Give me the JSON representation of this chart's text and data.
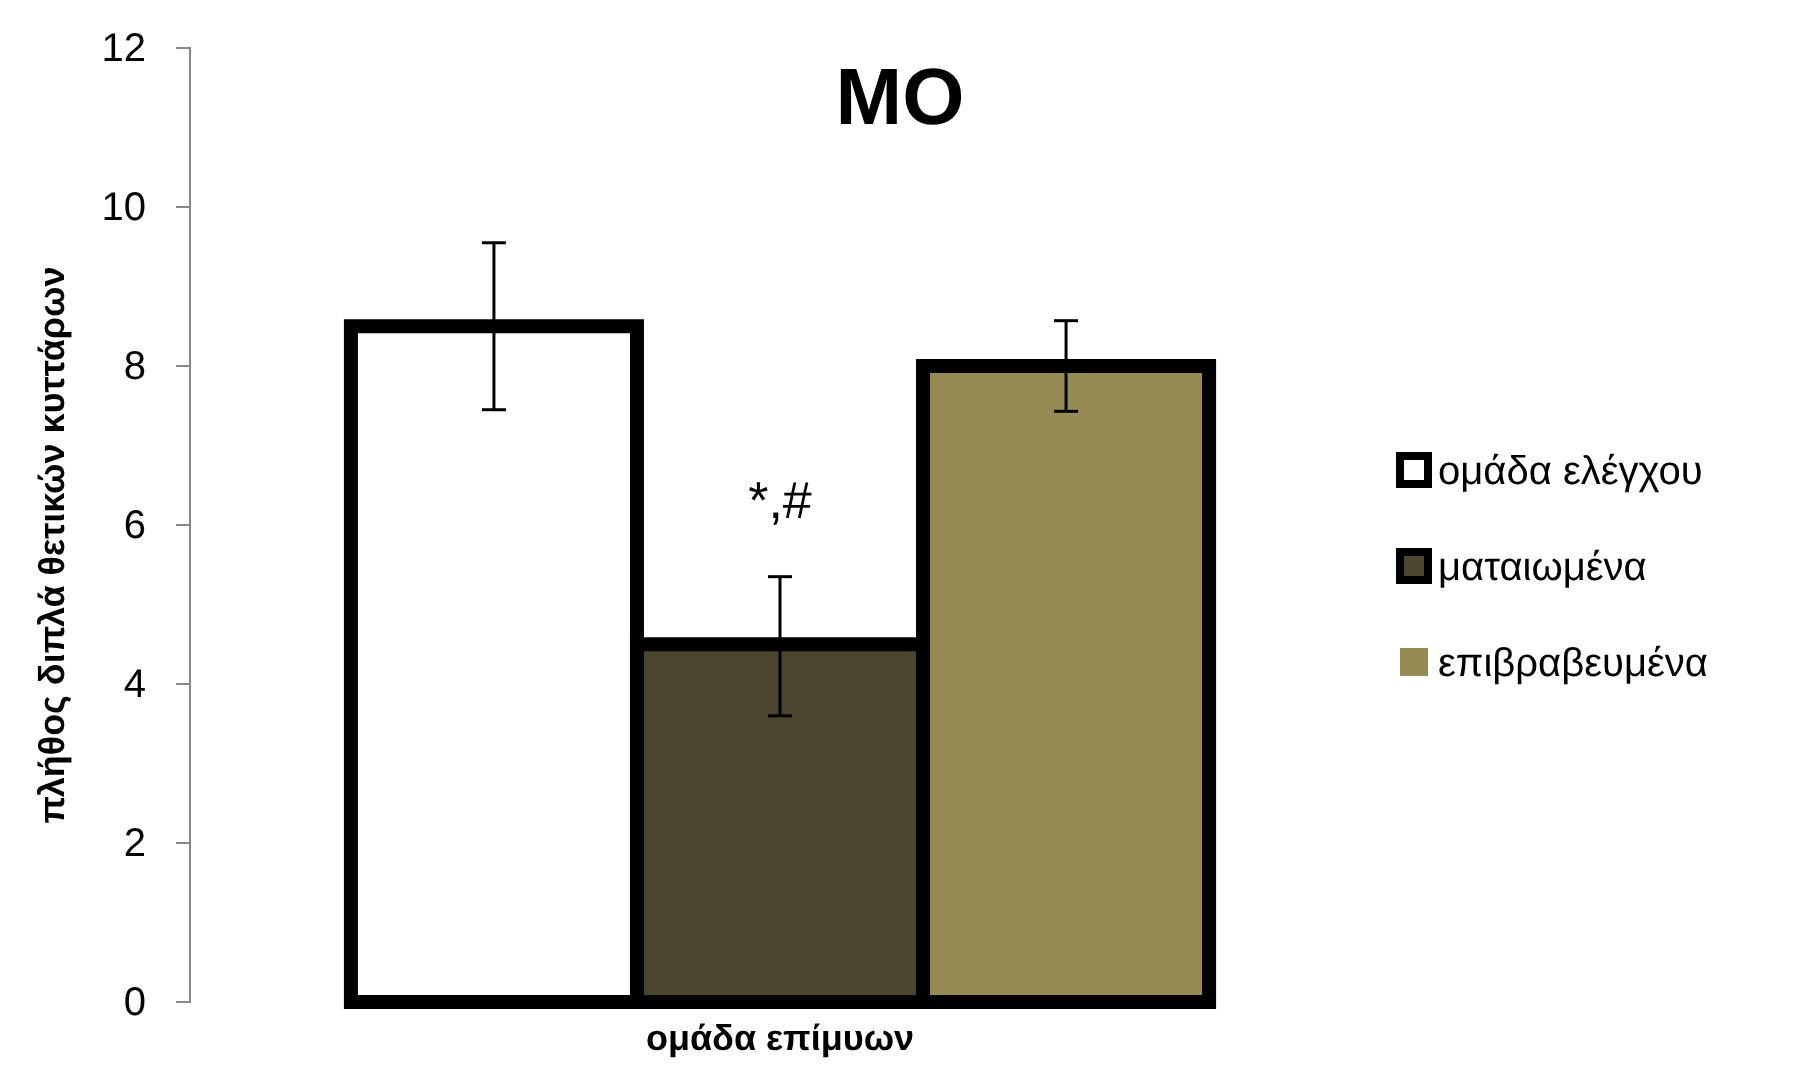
{
  "chart_data": {
    "type": "bar",
    "title": "ΜΟ",
    "ylabel": "πλήθος διπλά θετικών κυττάρων",
    "xlabel": "ομάδα επίμυων",
    "categories": [
      null
    ],
    "series": [
      {
        "name": "ομάδα ελέγχου",
        "color": "#ffffff",
        "values": [
          8.5
        ],
        "errors": [
          1.05
        ]
      },
      {
        "name": "ματαιωμένα",
        "color": "#4a452d",
        "values": [
          4.5
        ],
        "errors": [
          [
            3.6,
            5.35
          ]
        ]
      },
      {
        "name": "επιβραβευμένα",
        "color": "#968b54",
        "values": [
          8.0
        ],
        "errors": [
          0.57
        ]
      }
    ],
    "ylim": [
      0,
      12
    ],
    "yticks": [
      0,
      2,
      4,
      6,
      8,
      10,
      12
    ],
    "grid": false,
    "legend": "right",
    "annotations": [
      "*,#"
    ]
  }
}
